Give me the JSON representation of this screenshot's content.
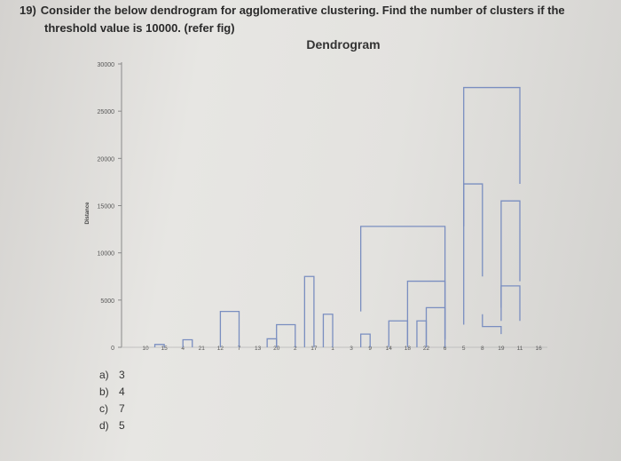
{
  "question": {
    "number": "19)",
    "line1": "Consider the below dendrogram for agglomerative clustering. Find the number of clusters if the",
    "line2": "threshold value is 10000. (refer fig)"
  },
  "options": [
    {
      "letter": "a)",
      "text": "3"
    },
    {
      "letter": "b)",
      "text": "4"
    },
    {
      "letter": "c)",
      "text": "7"
    },
    {
      "letter": "d)",
      "text": "5"
    }
  ],
  "chart_data": {
    "type": "dendrogram",
    "title": "Dendrogram",
    "ylabel": "Distance",
    "xlabel": "",
    "ylim": [
      0,
      30000
    ],
    "yticks": [
      0,
      5000,
      10000,
      15000,
      20000,
      25000,
      30000
    ],
    "leaves": [
      "10",
      "15",
      "4",
      "21",
      "12",
      "7",
      "13",
      "20",
      "2",
      "17",
      "1",
      "3",
      "9",
      "14",
      "18",
      "22",
      "6",
      "5",
      "8",
      "19",
      "11",
      "16"
    ],
    "links": [
      {
        "x": [
          0.5,
          1
        ],
        "y": 300,
        "c": [
          0,
          1
        ]
      },
      {
        "x": [
          2,
          2.5
        ],
        "y": 800,
        "c": [
          2,
          3
        ]
      },
      {
        "x": [
          4,
          5
        ],
        "y": 3800,
        "c": [
          4,
          5
        ]
      },
      {
        "x": [
          6.5,
          7
        ],
        "y": 900,
        "c": [
          6,
          7
        ]
      },
      {
        "x": [
          7,
          8
        ],
        "y": 2400,
        "c": [
          8,
          9
        ]
      },
      {
        "x": [
          8.5,
          9
        ],
        "y": 7500,
        "c": [
          10,
          11
        ]
      },
      {
        "x": [
          9.5,
          10
        ],
        "y": 3500,
        "c": [
          12,
          13
        ]
      },
      {
        "x": [
          11.5,
          12
        ],
        "y": 1400,
        "c": [
          14,
          15
        ]
      },
      {
        "x": [
          13,
          14
        ],
        "y": 2800,
        "c": [
          16,
          17
        ]
      },
      {
        "x": [
          14.5,
          15
        ],
        "y": 2800,
        "c": [
          18,
          19
        ]
      },
      {
        "x": [
          15,
          16
        ],
        "y": 4200,
        "c": [
          20,
          21
        ]
      },
      {
        "x": [
          14,
          16
        ],
        "y": 7000,
        "c": [
          22,
          23
        ]
      },
      {
        "x": [
          11.5,
          16
        ],
        "y": 12800,
        "c": [
          24,
          25
        ]
      },
      {
        "x": [
          17,
          18
        ],
        "y": 17300,
        "c": [
          26,
          27
        ]
      },
      {
        "x": [
          18,
          19
        ],
        "y": 2200,
        "c": [
          28,
          29
        ]
      },
      {
        "x": [
          19,
          20
        ],
        "y": 6500,
        "c": [
          30,
          31
        ]
      },
      {
        "x": [
          19,
          20
        ],
        "y": 15500,
        "c": [
          32,
          33
        ]
      },
      {
        "x": [
          17,
          20
        ],
        "y": 27500,
        "c": [
          34,
          35
        ]
      }
    ]
  }
}
